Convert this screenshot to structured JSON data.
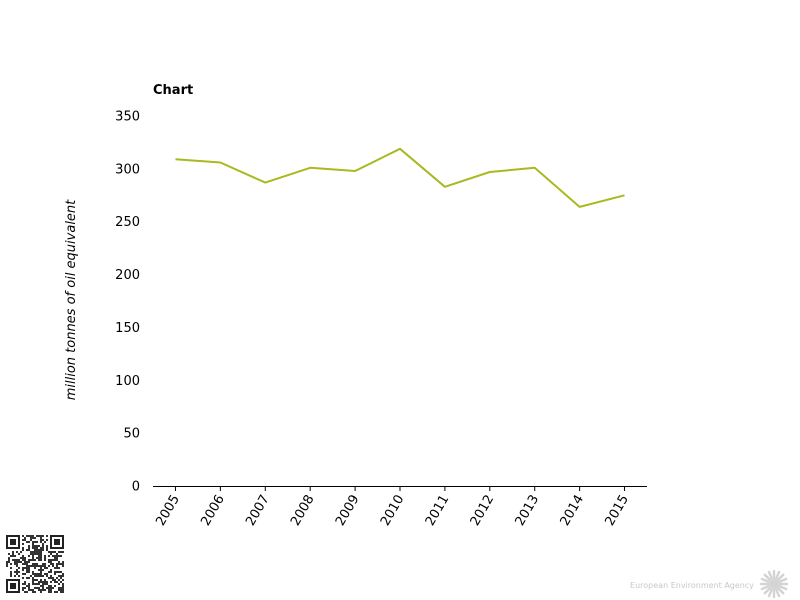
{
  "chart_data": {
    "type": "line",
    "title": "Chart",
    "ylabel": "million tonnes of oil equivalent",
    "xlabel": "",
    "categories": [
      "2005",
      "2006",
      "2007",
      "2008",
      "2009",
      "2010",
      "2011",
      "2012",
      "2013",
      "2014",
      "2015"
    ],
    "series": [
      {
        "values": [
          309,
          306,
          287,
          301,
          298,
          319,
          283,
          297,
          301,
          264,
          275
        ],
        "color": "#a9b91f"
      }
    ],
    "ylim": [
      0,
      350
    ],
    "yticks": [
      "0",
      "50",
      "100",
      "150",
      "200",
      "250",
      "300",
      "350"
    ],
    "grid": false,
    "legend": "none"
  },
  "footer": {
    "agency": "European Environment Agency",
    "qr_icon": "qr-code-icon",
    "logo_icon": "eea-sun-logo-icon"
  }
}
